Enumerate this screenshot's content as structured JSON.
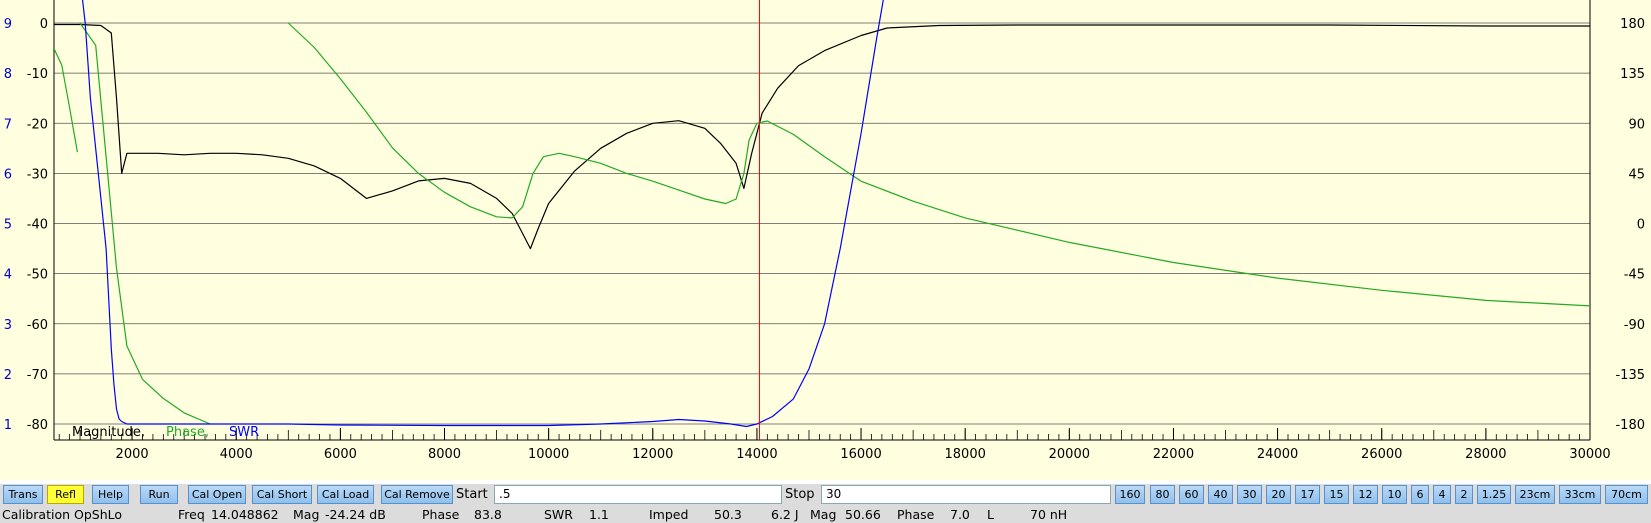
{
  "chart_data": {
    "type": "line",
    "x_ticks": [
      2000,
      4000,
      6000,
      8000,
      10000,
      12000,
      14000,
      16000,
      18000,
      20000,
      22000,
      24000,
      26000,
      28000,
      30000
    ],
    "xlim": [
      500,
      30000
    ],
    "left_mag_ticks": [
      "0",
      "-10",
      "-20",
      "-30",
      "-40",
      "-50",
      "-60",
      "-70",
      "-80"
    ],
    "left_swr_ticks": [
      "9",
      "8",
      "7",
      "6",
      "5",
      "4",
      "3",
      "2",
      "1"
    ],
    "right_phase_ticks": [
      "180",
      "135",
      "90",
      "45",
      "0",
      "-45",
      "-90",
      "-135",
      "-180"
    ],
    "ylim_mag": [
      -80,
      0
    ],
    "ylim_swr": [
      1,
      9
    ],
    "ylim_phase": [
      -180,
      180
    ],
    "marker_x": 14048.862,
    "legend": {
      "magnitude": "Magnitude,",
      "phase": "Phase,",
      "swr": "SWR"
    },
    "colors": {
      "magnitude": "#000000",
      "phase": "#22aa22",
      "swr": "#0000ff",
      "marker": "#ff0000",
      "left_swr_axis": "#0000cc"
    },
    "series": [
      {
        "name": "Magnitude,",
        "x": [
          500,
          1000,
          1400,
          1600,
          1700,
          1800,
          1900,
          2100,
          2500,
          3000,
          3500,
          4000,
          4500,
          5000,
          5500,
          6000,
          6500,
          7000,
          7500,
          8000,
          8500,
          9000,
          9300,
          9500,
          9650,
          9800,
          10000,
          10500,
          11000,
          11500,
          12000,
          12500,
          13000,
          13300,
          13600,
          13750,
          13900,
          14100,
          14400,
          14800,
          15300,
          16000,
          16500,
          17500,
          19000,
          21000,
          25000,
          28000,
          30000
        ],
        "values": [
          -0.3,
          -0.3,
          -0.5,
          -2,
          -15,
          -30,
          -26,
          -26,
          -26,
          -26.3,
          -26,
          -26,
          -26.3,
          -27,
          -28.5,
          -31,
          -35,
          -33.5,
          -31.5,
          -31,
          -32,
          -35,
          -38,
          -42,
          -45,
          -41,
          -36,
          -29.5,
          -25,
          -22,
          -20,
          -19.5,
          -21,
          -24,
          -28,
          -33,
          -26,
          -18,
          -13,
          -8.5,
          -5.5,
          -2.5,
          -1,
          -0.5,
          -0.4,
          -0.4,
          -0.4,
          -0.6,
          -0.6
        ]
      },
      {
        "name": "Phase,",
        "x": [
          1000,
          1300,
          1700,
          1900,
          2200,
          2600,
          3000,
          3500,
          4000,
          4500,
          5000,
          5500,
          6000,
          6500,
          7000,
          7500,
          8000,
          8500,
          9000,
          9300,
          9500,
          9700,
          9900,
          10200,
          10500,
          11000,
          11500,
          12000,
          12500,
          13000,
          13400,
          13600,
          13750,
          13850,
          14000,
          14200,
          14700,
          15300,
          16000,
          17000,
          18000,
          20000,
          22000,
          24000,
          26000,
          28000,
          30000
        ],
        "values": [
          180,
          160,
          -40,
          -110,
          -140,
          -157,
          -170,
          -180,
          null,
          null,
          180,
          158,
          130,
          100,
          68,
          45,
          28,
          15,
          6,
          5,
          15,
          45,
          60,
          63,
          60,
          54,
          45,
          38,
          30,
          22,
          18,
          22,
          45,
          75,
          90,
          92,
          80,
          60,
          38,
          20,
          5,
          -17,
          -35,
          -49,
          -60,
          -69,
          -74
        ]
      },
      {
        "name": "SWR",
        "x": [
          1000,
          1100,
          1200,
          1350,
          1500,
          1550,
          1600,
          1650,
          1700,
          1750,
          1800,
          1900,
          2000,
          2500,
          3500,
          5000,
          6000,
          8000,
          10000,
          11000,
          12000,
          12500,
          13000,
          13500,
          13800,
          14000,
          14300,
          14700,
          15000,
          15300,
          15600,
          16000,
          16300,
          16500
        ],
        "values": [
          9.9,
          9,
          7.5,
          6,
          4.5,
          3.5,
          2.5,
          1.8,
          1.3,
          1.1,
          1.05,
          1.0,
          1.0,
          1.0,
          1.0,
          1.0,
          0.98,
          0.97,
          0.97,
          1.0,
          1.05,
          1.09,
          1.06,
          1.0,
          0.95,
          1.0,
          1.15,
          1.5,
          2.1,
          3.0,
          4.5,
          6.8,
          8.7,
          9.9
        ]
      },
      {
        "name": "",
        "x": [
          500,
          650,
          800,
          950
        ],
        "values": [
          157,
          142,
          104,
          64
        ]
      }
    ]
  },
  "toolbar": {
    "buttons": [
      "Trans",
      "Refl",
      "Help",
      "Run",
      "Cal Open",
      "Cal Short",
      "Cal Load",
      "Cal Remove"
    ],
    "active_button": "Refl",
    "start_label": "Start",
    "start_value": ".5",
    "stop_label": "Stop",
    "stop_value": "30",
    "band_buttons": [
      "160",
      "80",
      "60",
      "40",
      "30",
      "20",
      "17",
      "15",
      "12",
      "10",
      "6",
      "4",
      "2",
      "1.25",
      "23cm",
      "33cm",
      "70cm"
    ]
  },
  "status": {
    "calibration": "Calibration OpShLo",
    "freq_label": "Freq",
    "freq_value": "14.048862",
    "mag_label": "Mag",
    "mag_value": "-24.24 dB",
    "phase_label": "Phase",
    "phase_value": "83.8",
    "swr_label": "SWR",
    "swr_value": "1.1",
    "imped_label": "Imped",
    "imped_r": "50.3",
    "imped_x": "6.2 J",
    "mag2_label": "Mag",
    "mag2_value": "50.66",
    "phase2_label": "Phase",
    "phase2_value": "7.0",
    "l_label": "L",
    "l_value": "70 nH"
  }
}
